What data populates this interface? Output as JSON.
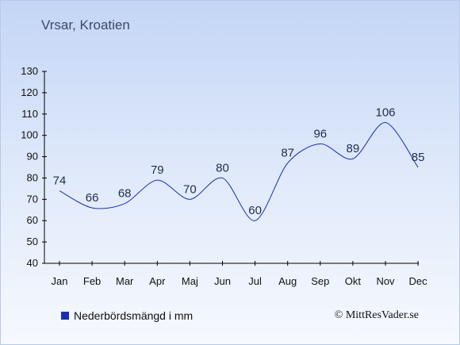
{
  "page": {
    "title": "Vrsar, Kroatien",
    "copyright": "© MittResVader.se"
  },
  "chart_data": {
    "type": "line",
    "categories": [
      "Jan",
      "Feb",
      "Mar",
      "Apr",
      "Maj",
      "Jun",
      "Jul",
      "Aug",
      "Sep",
      "Okt",
      "Nov",
      "Dec"
    ],
    "series": [
      {
        "name": "Nederbördsmängd i mm",
        "values": [
          74,
          66,
          68,
          79,
          70,
          80,
          60,
          87,
          96,
          89,
          106,
          85
        ]
      }
    ],
    "ylim": [
      40,
      130
    ],
    "yticks": [
      40,
      50,
      60,
      70,
      80,
      90,
      100,
      110,
      120,
      130
    ],
    "xlabel": "",
    "ylabel": "",
    "grid": false,
    "legend_position": "bottom-left",
    "colors": {
      "line": "#1a2fb0",
      "axis": "#000000",
      "label": "#1f2d4d"
    }
  }
}
